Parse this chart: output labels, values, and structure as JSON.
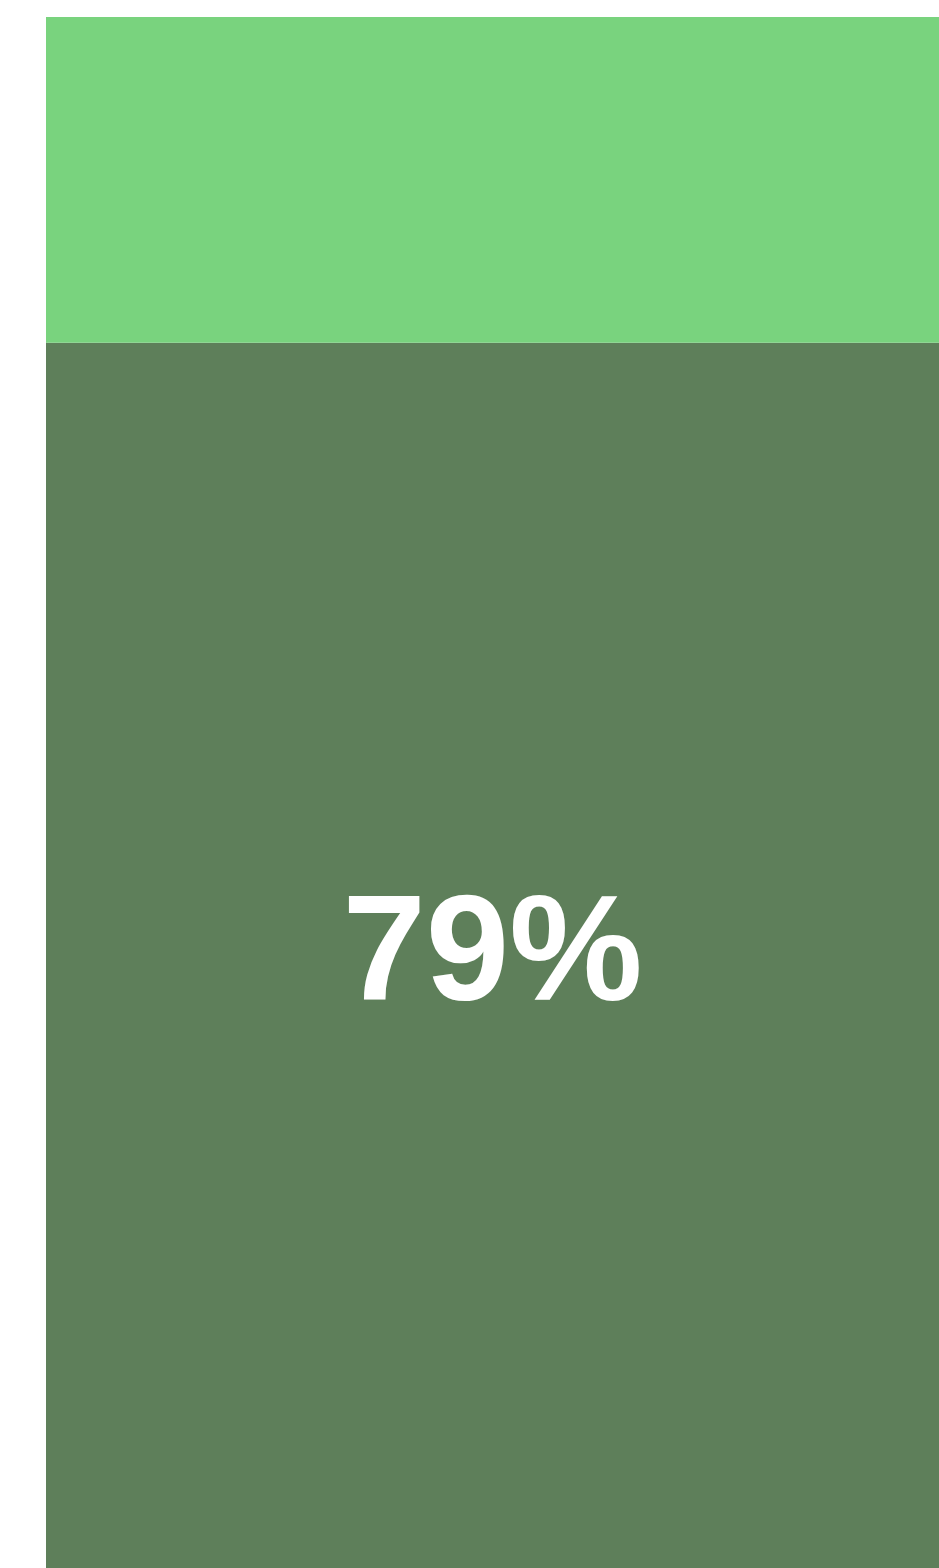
{
  "chart_data": {
    "type": "bar",
    "stacked": true,
    "categories": [
      null
    ],
    "ylim": [
      0,
      100
    ],
    "tick_labels": false,
    "series": [
      {
        "color": "#5e7f5a",
        "values": [
          79
        ],
        "value_labels": [
          "79%"
        ]
      },
      {
        "color": "#79d37e",
        "values": [
          21
        ],
        "value_labels": [
          null
        ]
      }
    ]
  }
}
